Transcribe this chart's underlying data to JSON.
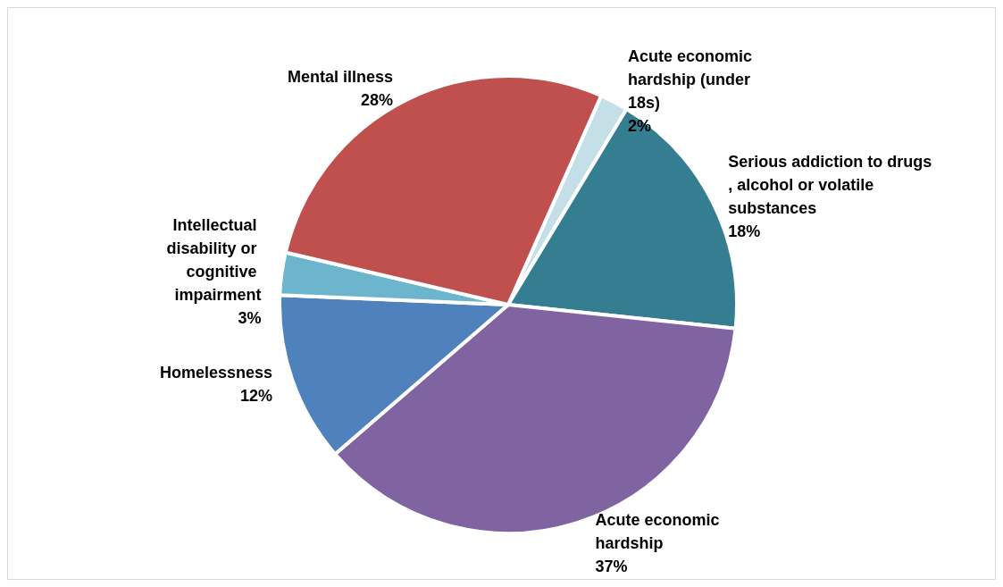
{
  "chart_data": {
    "type": "pie",
    "categories": [
      "Acute economic hardship (under 18s)",
      "Serious addiction to drugs, alcohol or volatile substances",
      "Acute economic hardship",
      "Homelessness",
      "Intellectual disability or cognitive impairment",
      "Mental illness"
    ],
    "values": [
      2,
      18,
      37,
      12,
      3,
      28
    ],
    "colors": [
      "#c5dfe9",
      "#357e92",
      "#8064a2",
      "#4f81bd",
      "#6db5cc",
      "#c0504d"
    ],
    "value_labels": [
      "2%",
      "18%",
      "37%",
      "12%",
      "3%",
      "28%"
    ],
    "legend": false
  }
}
